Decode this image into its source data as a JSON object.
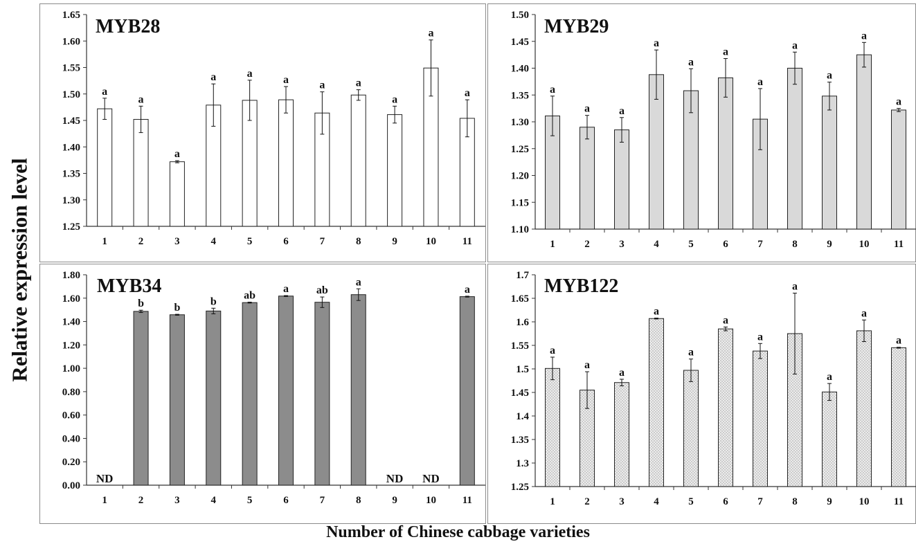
{
  "figure": {
    "ylabel": "Relative expression level",
    "xlabel": "Number of Chinese cabbage varieties"
  },
  "chart_data": [
    {
      "type": "bar",
      "title": "MYB28",
      "categories": [
        "1",
        "2",
        "3",
        "4",
        "5",
        "6",
        "7",
        "8",
        "9",
        "10",
        "11"
      ],
      "values": [
        1.472,
        1.452,
        1.372,
        1.479,
        1.488,
        1.489,
        1.464,
        1.498,
        1.461,
        1.549,
        1.454
      ],
      "errors": [
        0.02,
        0.025,
        0.002,
        0.04,
        0.038,
        0.025,
        0.04,
        0.01,
        0.016,
        0.053,
        0.035
      ],
      "letters": [
        "a",
        "a",
        "a",
        "a",
        "a",
        "a",
        "a",
        "a",
        "a",
        "a",
        "a"
      ],
      "ylim": [
        1.25,
        1.65
      ],
      "yticks": [
        "1.25",
        "1.30",
        "1.35",
        "1.40",
        "1.45",
        "1.50",
        "1.55",
        "1.60",
        "1.65"
      ],
      "bar_color": "#ffffff",
      "grid": false
    },
    {
      "type": "bar",
      "title": "MYB29",
      "categories": [
        "1",
        "2",
        "3",
        "4",
        "5",
        "6",
        "7",
        "8",
        "9",
        "10",
        "11"
      ],
      "values": [
        1.311,
        1.29,
        1.285,
        1.388,
        1.358,
        1.382,
        1.305,
        1.4,
        1.348,
        1.425,
        1.322
      ],
      "errors": [
        0.037,
        0.022,
        0.023,
        0.046,
        0.041,
        0.036,
        0.057,
        0.03,
        0.026,
        0.023,
        0.003
      ],
      "letters": [
        "a",
        "a",
        "a",
        "a",
        "a",
        "a",
        "a",
        "a",
        "a",
        "a",
        "a"
      ],
      "ylim": [
        1.1,
        1.5
      ],
      "yticks": [
        "1.10",
        "1.15",
        "1.20",
        "1.25",
        "1.30",
        "1.35",
        "1.40",
        "1.45",
        "1.50"
      ],
      "bar_color": "#d9d9d9",
      "grid": false
    },
    {
      "type": "bar",
      "title": "MYB34",
      "categories": [
        "1",
        "2",
        "3",
        "4",
        "5",
        "6",
        "7",
        "8",
        "9",
        "10",
        "11"
      ],
      "values": [
        0,
        1.487,
        1.458,
        1.49,
        1.562,
        1.618,
        1.565,
        1.63,
        0,
        0,
        1.613
      ],
      "errors": [
        0,
        0.01,
        0.004,
        0.024,
        0.004,
        0.004,
        0.045,
        0.05,
        0,
        0,
        0.004
      ],
      "letters": [
        "ND",
        "b",
        "b",
        "b",
        "ab",
        "a",
        "ab",
        "a",
        "ND",
        "ND",
        "a"
      ],
      "ylim": [
        0,
        1.8
      ],
      "yticks": [
        "0.00",
        "0.20",
        "0.40",
        "0.60",
        "0.80",
        "1.00",
        "1.20",
        "1.40",
        "1.60",
        "1.80"
      ],
      "bar_color": "#8c8c8c",
      "grid": false
    },
    {
      "type": "bar",
      "title": "MYB122",
      "categories": [
        "1",
        "2",
        "3",
        "4",
        "5",
        "6",
        "7",
        "8",
        "9",
        "10",
        "11"
      ],
      "values": [
        1.501,
        1.455,
        1.471,
        1.607,
        1.497,
        1.585,
        1.538,
        1.575,
        1.451,
        1.581,
        1.545
      ],
      "errors": [
        0.024,
        0.039,
        0.007,
        0.001,
        0.024,
        0.004,
        0.016,
        0.086,
        0.018,
        0.023,
        0.001
      ],
      "letters": [
        "a",
        "a",
        "a",
        "a",
        "a",
        "a",
        "a",
        "a",
        "a",
        "a",
        "a"
      ],
      "ylim": [
        1.25,
        1.7
      ],
      "yticks": [
        "1.25",
        "1.3",
        "1.35",
        "1.4",
        "1.45",
        "1.5",
        "1.55",
        "1.6",
        "1.65",
        "1.7"
      ],
      "bar_color": "#e4e4e4",
      "bar_pattern": "stipple",
      "grid": false
    }
  ]
}
